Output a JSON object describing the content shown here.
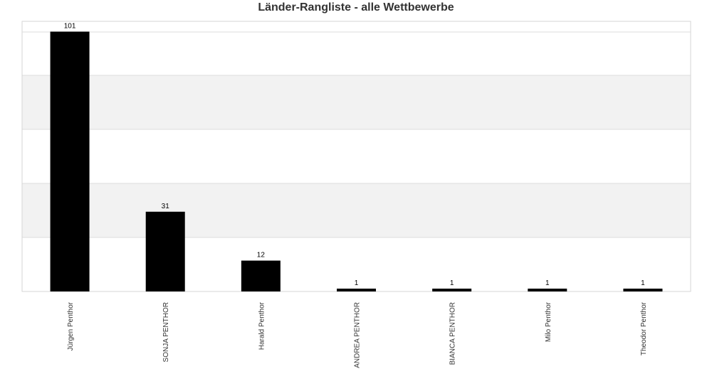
{
  "chart_data": {
    "type": "bar",
    "title": "Länder-Rangliste - alle Wettbewerbe",
    "categories": [
      "Jürgen Penthor",
      "SONJA PENTHOR",
      "Harald Penthor",
      "ANDREA PENTHOR",
      "BIANCA PENTHOR",
      "Milo Penthor",
      "Theodor Penthor"
    ],
    "values": [
      101,
      31,
      12,
      1,
      1,
      1,
      1
    ],
    "xlabel": "",
    "ylabel": "",
    "ylim": [
      0,
      105
    ],
    "grid": true,
    "legend": "none",
    "colors": {
      "bar": "#000000",
      "band_alt": "#f2f2f2",
      "band": "#ffffff",
      "grid": "#dcdcdc",
      "title": "#333333"
    }
  }
}
